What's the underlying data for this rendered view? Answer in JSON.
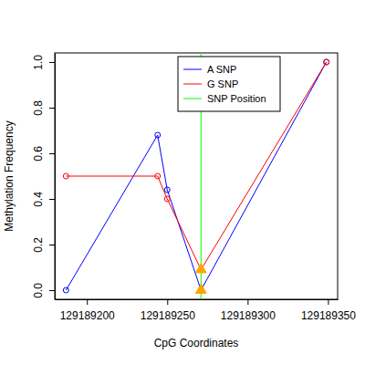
{
  "chart_data": {
    "type": "line",
    "x_label": "CpG Coordinates",
    "y_label": "Methylation Frequency",
    "x": [
      129189187,
      129189244,
      129189250,
      129189271,
      129189349
    ],
    "series": [
      {
        "name": "A SNP",
        "color": "#0000FF",
        "marker": "circle",
        "line_style": "solid",
        "values": [
          0.0,
          0.68,
          0.44,
          0.0,
          1.0
        ]
      },
      {
        "name": "G SNP",
        "color": "#FF0000",
        "marker": "circle",
        "line_style": "solid",
        "values": [
          0.5,
          0.5,
          0.4,
          0.09,
          1.0
        ]
      }
    ],
    "snp_line": {
      "name": "SNP Position",
      "color": "#00FF00",
      "x": 129189271
    },
    "xlim": [
      129189180,
      129189356
    ],
    "xticks": [
      129189200,
      129189250,
      129189300,
      129189350
    ],
    "ylim": [
      -0.04,
      1.04
    ],
    "yticks": [
      {
        "value": 0,
        "label": "0.0"
      },
      {
        "value": 0.2,
        "label": "0.2"
      },
      {
        "value": 0.4,
        "label": "0.4"
      },
      {
        "value": 0.6,
        "label": "0.6"
      },
      {
        "value": 0.8,
        "label": "0.8"
      },
      {
        "value": 1,
        "label": "1.0"
      }
    ],
    "grid": false,
    "legend": "top"
  }
}
